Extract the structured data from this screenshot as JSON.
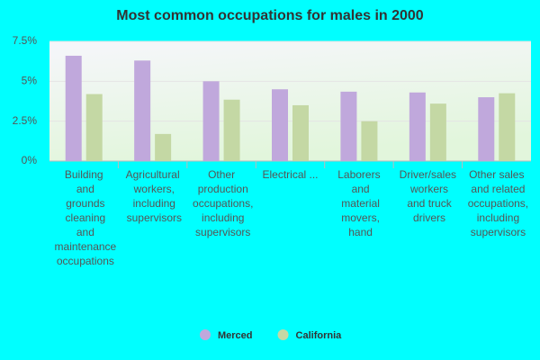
{
  "chart_data": {
    "type": "bar",
    "title": "Most common occupations for males in 2000",
    "categories": [
      "Building\nand\ngrounds\ncleaning\nand\nmaintenance\noccupations",
      "Agricultural\nworkers,\nincluding\nsupervisors",
      "Other\nproduction\noccupations,\nincluding\nsupervisors",
      "Electrical ...",
      "Laborers\nand\nmaterial\nmovers,\nhand",
      "Driver/sales\nworkers\nand truck\ndrivers",
      "Other sales\nand related\noccupations,\nincluding\nsupervisors"
    ],
    "series": [
      {
        "name": "Merced",
        "color": "#c0a8dc",
        "values": [
          6.6,
          6.3,
          5.0,
          4.5,
          4.35,
          4.3,
          4.0
        ]
      },
      {
        "name": "California",
        "color": "#c4d8a4",
        "values": [
          4.2,
          1.7,
          3.85,
          3.5,
          2.5,
          3.6,
          4.25
        ]
      }
    ],
    "ylim": [
      0,
      7.5
    ],
    "yticks": [
      {
        "value": 0,
        "label": "0%"
      },
      {
        "value": 2.5,
        "label": "2.5%"
      },
      {
        "value": 5,
        "label": "5%"
      },
      {
        "value": 7.5,
        "label": "7.5%"
      }
    ],
    "grid": true
  }
}
